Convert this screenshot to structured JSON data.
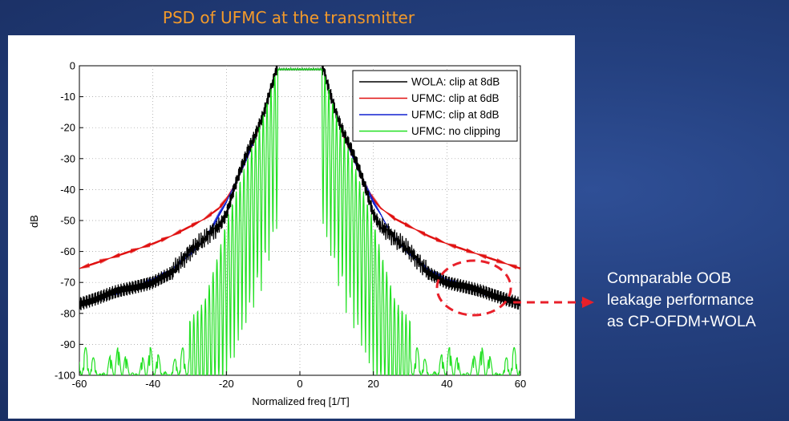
{
  "slide": {
    "title": "PSD of UFMC at the transmitter",
    "callout_lines": [
      "Comparable OOB",
      "leakage performance",
      "as CP-OFDM+WOLA"
    ]
  },
  "colors": {
    "background": "#24407f",
    "title": "#f39a2a",
    "callout_text": "#ffffff",
    "annotation": "#e8202a"
  },
  "chart_data": {
    "type": "line",
    "xlabel": "Normalized freq [1/T]",
    "ylabel": "dB",
    "xlim": [
      -60,
      60
    ],
    "ylim": [
      -100,
      0
    ],
    "xticks": [
      -60,
      -40,
      -20,
      0,
      20,
      40,
      60
    ],
    "yticks": [
      0,
      -10,
      -20,
      -30,
      -40,
      -50,
      -60,
      -70,
      -80,
      -90,
      -100
    ],
    "grid": true,
    "legend_position": "top-right",
    "series": [
      {
        "name": "WOLA: clip at 8dB",
        "color": "#000000",
        "x": [
          -60,
          -55,
          -50,
          -45,
          -40,
          -35,
          -30,
          -28,
          -26,
          -24,
          -22,
          -20,
          -18,
          -16,
          -14,
          -12,
          -10,
          -8,
          -7,
          -6.5,
          -6
        ],
        "values": [
          -77,
          -75,
          -73,
          -71.5,
          -70,
          -67,
          -60,
          -58,
          -56,
          -53.5,
          -52,
          -48,
          -40,
          -33,
          -27,
          -22,
          -16,
          -8,
          -4,
          -1,
          -1
        ]
      },
      {
        "name": "UFMC: clip at 6dB",
        "color": "#e01010",
        "x": [
          -60,
          -55,
          -50,
          -45,
          -40,
          -35,
          -30,
          -26,
          -22,
          -20,
          -18,
          -16,
          -14,
          -12,
          -10,
          -8,
          -7,
          -6.5,
          -6
        ],
        "values": [
          -65.5,
          -63.5,
          -61.5,
          -59.5,
          -57.5,
          -55,
          -52,
          -49.5,
          -46,
          -43,
          -39,
          -34,
          -28.5,
          -23,
          -16,
          -8,
          -4,
          -1,
          -1
        ]
      },
      {
        "name": "UFMC: clip at 8dB",
        "color": "#1020d0",
        "x": [
          -60,
          -55,
          -50,
          -45,
          -40,
          -35,
          -30,
          -26,
          -24,
          -22,
          -20,
          -18,
          -16,
          -14,
          -12,
          -10,
          -8,
          -7,
          -6.5,
          -6
        ],
        "values": [
          -77,
          -75.5,
          -73.5,
          -71.5,
          -69,
          -66,
          -61,
          -56,
          -52.5,
          -48,
          -44,
          -39,
          -34,
          -28.5,
          -22.5,
          -16,
          -8,
          -4,
          -1,
          -1
        ]
      },
      {
        "name": "UFMC: no clipping",
        "color": "#22e022",
        "x": [
          -60,
          -50,
          -40,
          -30,
          -26,
          -22,
          -20,
          -18,
          -16,
          -14,
          -12,
          -10,
          -8,
          -7,
          -6.5,
          -6
        ],
        "values": [
          -91,
          -91,
          -90,
          -82,
          -76,
          -60,
          -50,
          -43,
          -36,
          -29,
          -23,
          -16,
          -8,
          -4,
          -1,
          -1
        ]
      }
    ]
  }
}
